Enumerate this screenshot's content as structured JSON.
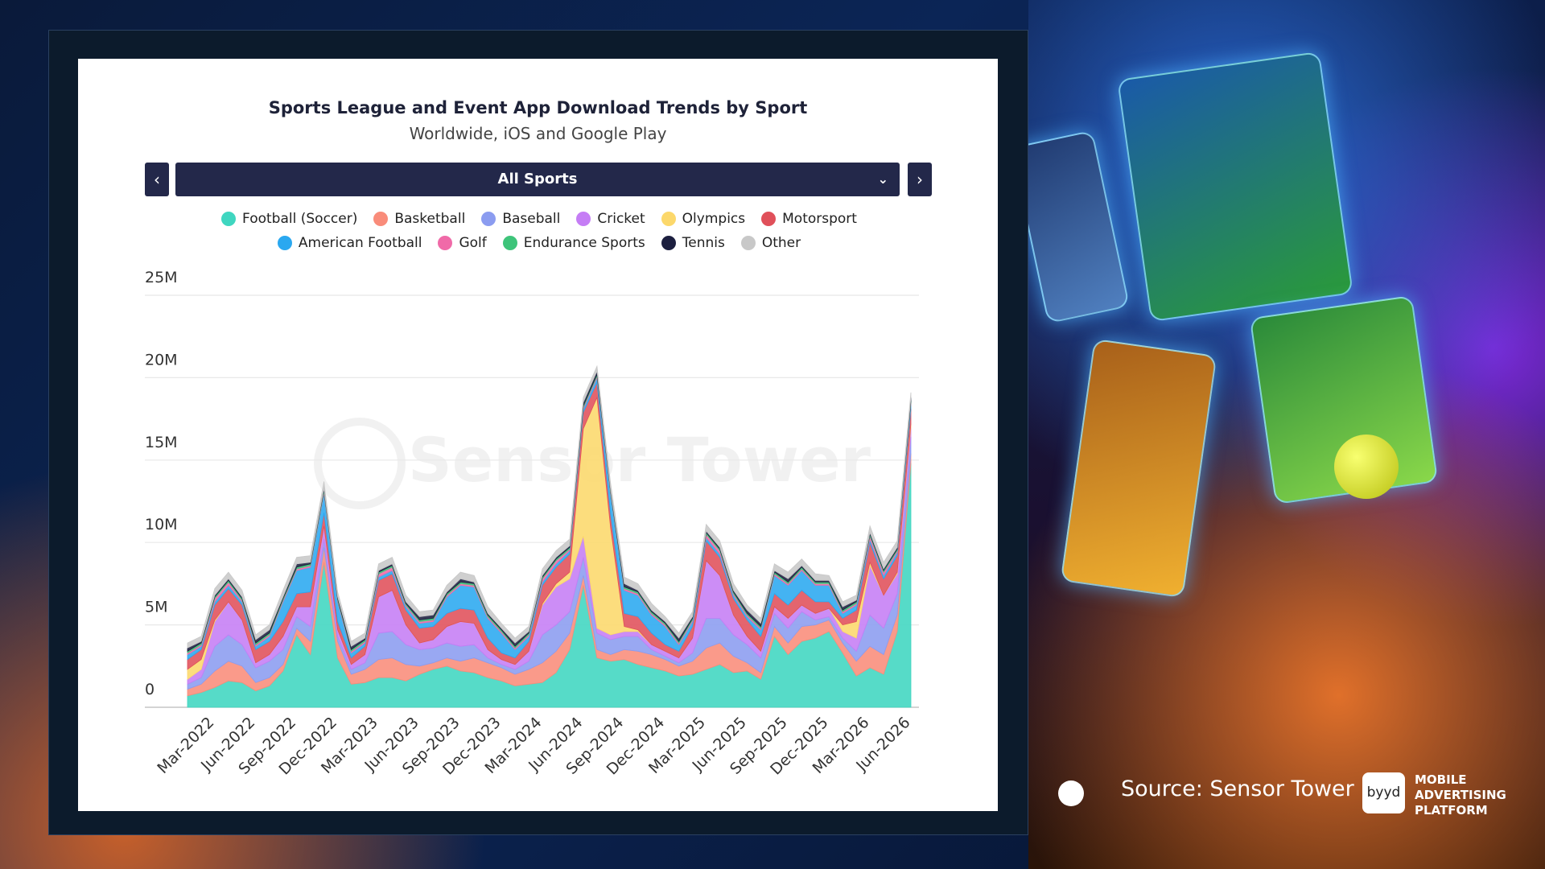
{
  "chart_data": {
    "type": "area",
    "stacked": true,
    "title": "Sports League and Event App Download Trends by Sport",
    "subtitle": "Worldwide, iOS and Google Play",
    "selector": "All Sports",
    "watermark": "Sensor Tower",
    "categories": [
      null,
      null,
      "Mar-2022",
      null,
      null,
      "Jun-2022",
      null,
      null,
      "Sep-2022",
      null,
      null,
      "Dec-2022",
      null,
      null,
      "Mar-2023",
      null,
      null,
      "Jun-2023",
      null,
      null,
      "Sep-2023",
      null,
      null,
      "Dec-2023",
      null,
      null,
      "Mar-2024",
      null,
      null,
      "Jun-2024",
      null,
      null,
      "Sep-2024",
      null,
      null,
      "Dec-2024",
      null,
      null,
      "Mar-2025",
      null,
      null,
      "Jun-2025",
      null,
      null,
      "Sep-2025",
      null,
      null,
      "Dec-2025",
      null,
      null,
      "Mar-2026",
      null,
      null,
      "Jun-2026"
    ],
    "ylim": [
      0,
      25
    ],
    "yticks": [
      0,
      {
        "value": 5,
        "label": "5M"
      },
      {
        "value": 10,
        "label": "10M"
      },
      {
        "value": 15,
        "label": "15M"
      },
      {
        "value": 20,
        "label": "20M"
      },
      {
        "value": 25,
        "label": "25M"
      }
    ],
    "grid": true,
    "series": [
      {
        "name": "Football (Soccer)",
        "color": "#3fd6c0",
        "values": [
          0.7,
          0.9,
          1.2,
          1.6,
          1.5,
          1.0,
          1.3,
          2.2,
          4.4,
          3.2,
          8.8,
          3.0,
          1.4,
          1.5,
          1.8,
          1.8,
          1.6,
          2.0,
          2.3,
          2.5,
          2.2,
          2.1,
          1.8,
          1.6,
          1.3,
          1.4,
          1.5,
          2.1,
          3.5,
          7.4,
          3.0,
          2.8,
          2.9,
          2.6,
          2.4,
          2.2,
          1.9,
          2.0,
          2.3,
          2.6,
          2.1,
          2.2,
          1.7,
          4.3,
          3.2,
          4.0,
          4.2,
          4.6,
          3.3,
          1.9,
          2.4,
          2.0,
          4.6,
          14.8
        ]
      },
      {
        "name": "Basketball",
        "color": "#f98c7a",
        "values": [
          0.4,
          0.5,
          1.0,
          1.2,
          1.0,
          0.5,
          0.5,
          0.4,
          0.4,
          0.8,
          0.9,
          1.0,
          0.6,
          0.8,
          1.1,
          1.2,
          1.0,
          0.5,
          0.4,
          0.5,
          0.6,
          0.9,
          0.9,
          0.8,
          0.7,
          0.9,
          1.2,
          1.3,
          1.0,
          0.6,
          0.5,
          0.4,
          0.6,
          0.8,
          0.8,
          0.7,
          0.6,
          0.8,
          1.3,
          1.3,
          1.0,
          0.5,
          0.4,
          0.6,
          0.7,
          0.9,
          0.8,
          0.7,
          0.6,
          0.9,
          1.3,
          1.2,
          1.0,
          0.6
        ]
      },
      {
        "name": "Baseball",
        "color": "#8b9cf0",
        "values": [
          0.3,
          0.4,
          1.5,
          1.6,
          1.3,
          0.9,
          1.0,
          0.9,
          0.7,
          0.9,
          0.5,
          0.3,
          0.3,
          0.4,
          1.6,
          1.6,
          1.2,
          1.0,
          0.9,
          0.9,
          0.9,
          0.8,
          0.3,
          0.2,
          0.3,
          0.5,
          1.7,
          1.6,
          1.3,
          1.1,
          1.0,
          0.9,
          0.8,
          0.9,
          0.3,
          0.2,
          0.2,
          0.5,
          1.8,
          1.5,
          1.3,
          1.1,
          0.9,
          0.8,
          0.9,
          0.9,
          0.3,
          0.2,
          0.3,
          0.6,
          1.9,
          1.6,
          1.3,
          1.0
        ]
      },
      {
        "name": "Cricket",
        "color": "#c57df5",
        "values": [
          0.3,
          0.5,
          1.5,
          2.0,
          1.5,
          0.3,
          0.4,
          0.8,
          0.6,
          1.2,
          0.8,
          0.4,
          0.3,
          0.5,
          2.2,
          2.5,
          1.2,
          0.4,
          0.5,
          1.0,
          1.5,
          1.3,
          0.5,
          0.3,
          0.3,
          0.6,
          1.8,
          2.3,
          2.0,
          1.3,
          0.3,
          0.3,
          0.3,
          0.3,
          0.3,
          0.3,
          0.3,
          0.9,
          3.5,
          2.6,
          1.2,
          0.5,
          0.4,
          0.4,
          0.6,
          0.4,
          0.4,
          0.5,
          0.4,
          0.8,
          3.0,
          2.0,
          1.2,
          0.6
        ]
      },
      {
        "name": "Olympics",
        "color": "#fcd86b",
        "values": [
          0.6,
          0.6,
          0.1,
          0,
          0,
          0,
          0,
          0,
          0,
          0,
          0,
          0,
          0,
          0,
          0,
          0,
          0,
          0,
          0,
          0,
          0,
          0,
          0,
          0,
          0,
          0,
          0.1,
          0.2,
          0.4,
          6.5,
          14.0,
          6.5,
          0.3,
          0.1,
          0,
          0,
          0,
          0,
          0,
          0,
          0,
          0,
          0,
          0,
          0,
          0,
          0,
          0,
          0.4,
          1.0,
          0.2,
          0,
          0.1,
          0.2
        ]
      },
      {
        "name": "Motorsport",
        "color": "#e0505a",
        "values": [
          0.6,
          0.6,
          0.9,
          0.8,
          0.9,
          0.8,
          0.8,
          0.9,
          0.8,
          0.9,
          0.8,
          0.5,
          0.4,
          0.5,
          1.0,
          1.0,
          0.9,
          0.9,
          0.8,
          0.8,
          0.8,
          0.8,
          0.7,
          0.4,
          0.4,
          0.6,
          1.1,
          1.0,
          1.1,
          1.0,
          0.9,
          0.8,
          0.8,
          0.8,
          0.7,
          0.4,
          0.4,
          0.7,
          1.2,
          1.1,
          1.0,
          1.0,
          0.9,
          0.8,
          0.8,
          0.9,
          0.7,
          0.4,
          0.4,
          0.7,
          1.2,
          1.0,
          1.0,
          0.9
        ]
      },
      {
        "name": "American Football",
        "color": "#2aa8f0",
        "values": [
          0.3,
          0.2,
          0.2,
          0.2,
          0.2,
          0.2,
          0.3,
          1.2,
          1.4,
          1.5,
          1.2,
          1.2,
          0.3,
          0.2,
          0.2,
          0.2,
          0.2,
          0.3,
          0.3,
          1.0,
          1.4,
          1.4,
          1.2,
          1.2,
          0.5,
          0.3,
          0.2,
          0.2,
          0.2,
          0.2,
          0.3,
          1.2,
          1.4,
          1.3,
          1.1,
          1.1,
          0.4,
          0.3,
          0.2,
          0.2,
          0.2,
          0.2,
          0.4,
          1.1,
          1.2,
          1.2,
          1.0,
          1.0,
          0.3,
          0.3,
          0.2,
          0.2,
          0.2,
          0.3
        ]
      },
      {
        "name": "Golf",
        "color": "#f06aa8",
        "values": [
          0.1,
          0.1,
          0.2,
          0.2,
          0.1,
          0.1,
          0.1,
          0.1,
          0.1,
          0.1,
          0.1,
          0.1,
          0.1,
          0.1,
          0.2,
          0.2,
          0.1,
          0.1,
          0.1,
          0.1,
          0.1,
          0.1,
          0.1,
          0.1,
          0.1,
          0.1,
          0.2,
          0.2,
          0.1,
          0.1,
          0.1,
          0.1,
          0.1,
          0.1,
          0.1,
          0.1,
          0.1,
          0.1,
          0.2,
          0.2,
          0.1,
          0.1,
          0.1,
          0.1,
          0.1,
          0.1,
          0.1,
          0.1,
          0.1,
          0.1,
          0.2,
          0.2,
          0.1,
          0.1
        ]
      },
      {
        "name": "Endurance Sports",
        "color": "#3ec47a",
        "values": [
          0.1,
          0.1,
          0.1,
          0.1,
          0.1,
          0.1,
          0.1,
          0.1,
          0.1,
          0.1,
          0.1,
          0.1,
          0.1,
          0.1,
          0.1,
          0.1,
          0.1,
          0.1,
          0.1,
          0.1,
          0.1,
          0.1,
          0.1,
          0.1,
          0.1,
          0.1,
          0.1,
          0.1,
          0.1,
          0.1,
          0.1,
          0.1,
          0.1,
          0.1,
          0.1,
          0.1,
          0.1,
          0.1,
          0.1,
          0.1,
          0.1,
          0.1,
          0.1,
          0.1,
          0.1,
          0.1,
          0.1,
          0.1,
          0.1,
          0.1,
          0.1,
          0.1,
          0.1,
          0.1
        ]
      },
      {
        "name": "Tennis",
        "color": "#1c1f3f",
        "values": [
          0.2,
          0.1,
          0.1,
          0.1,
          0.1,
          0.2,
          0.2,
          0.1,
          0.2,
          0.1,
          0.1,
          0.1,
          0.2,
          0.1,
          0.1,
          0.1,
          0.1,
          0.2,
          0.2,
          0.1,
          0.2,
          0.1,
          0.1,
          0.1,
          0.2,
          0.1,
          0.1,
          0.1,
          0.1,
          0.2,
          0.2,
          0.1,
          0.2,
          0.1,
          0.1,
          0.1,
          0.2,
          0.1,
          0.1,
          0.1,
          0.1,
          0.2,
          0.2,
          0.1,
          0.2,
          0.1,
          0.1,
          0.1,
          0.2,
          0.1,
          0.1,
          0.1,
          0.1,
          0.2
        ]
      },
      {
        "name": "Other",
        "color": "#c8c8c8",
        "values": [
          0.3,
          0.3,
          0.4,
          0.4,
          0.4,
          0.3,
          0.3,
          0.4,
          0.4,
          0.4,
          0.4,
          0.3,
          0.3,
          0.3,
          0.4,
          0.4,
          0.4,
          0.3,
          0.3,
          0.4,
          0.4,
          0.4,
          0.4,
          0.3,
          0.3,
          0.3,
          0.4,
          0.4,
          0.4,
          0.3,
          0.3,
          0.4,
          0.4,
          0.4,
          0.4,
          0.3,
          0.3,
          0.3,
          0.4,
          0.4,
          0.4,
          0.3,
          0.3,
          0.4,
          0.4,
          0.4,
          0.4,
          0.3,
          0.3,
          0.3,
          0.4,
          0.4,
          0.4,
          0.3
        ]
      }
    ]
  },
  "footer": {
    "source": "Source: Sensor Tower",
    "logo": "byyd",
    "tagline": [
      "MOBILE",
      "ADVERTISING",
      "PLATFORM"
    ]
  }
}
